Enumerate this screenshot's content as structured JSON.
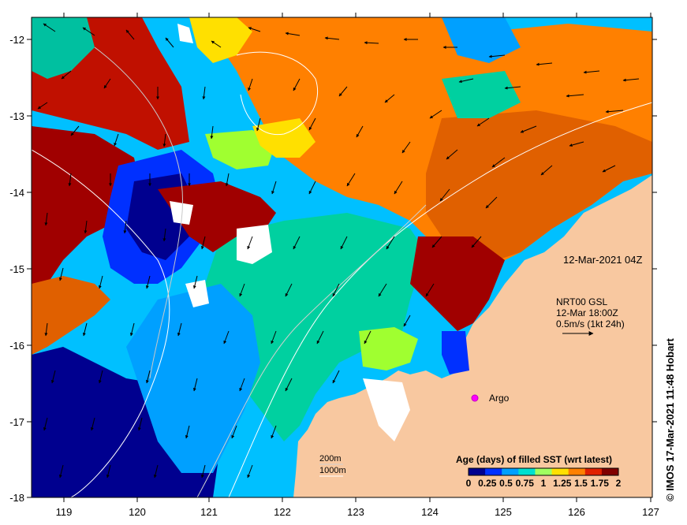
{
  "map": {
    "timestamp": "12-Mar-2021 04Z",
    "current_product": {
      "line1": "NRT00 GSL",
      "line2": "12-Mar 18:00Z",
      "line3": "0.5m/s (1kt 24h)"
    },
    "argo_label": "Argo",
    "depth_legend": {
      "shallow": "200m",
      "deep": "1000m"
    },
    "colorbar": {
      "title": "Age (days) of filled SST (wrt latest)",
      "tick_labels": [
        "0",
        "0.25",
        "0.5",
        "0.75",
        "1",
        "1.25",
        "1.5",
        "1.75",
        "2"
      ],
      "colors": [
        "#00008f",
        "#0030ff",
        "#00a0ff",
        "#00e0d0",
        "#a0ff60",
        "#ffe000",
        "#ff8000",
        "#e02000",
        "#800000"
      ]
    },
    "credit": "© IMOS 17-Mar-2021 11:48 Hobart",
    "longitude_labels": [
      "119",
      "120",
      "121",
      "122",
      "123",
      "124",
      "125",
      "126",
      "127"
    ],
    "latitude_labels": [
      "-12",
      "-13",
      "-14",
      "-15",
      "-16",
      "-17",
      "-18"
    ],
    "colors": {
      "land": "#f8c8a0",
      "no_data": "#ffffff",
      "age_0": "#00008f",
      "age_025": "#0030ff",
      "age_05": "#00a0ff",
      "age_075": "#00d0a0",
      "age_1": "#a0ff30",
      "age_125": "#ffe000",
      "age_15": "#ff8000",
      "age_175": "#e06000",
      "age_2": "#a00000",
      "argo": "#ff00ff"
    }
  }
}
